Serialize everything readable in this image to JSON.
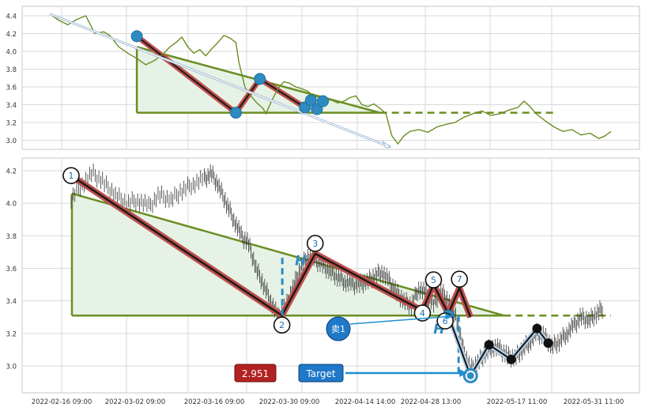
{
  "chart_data": [
    {
      "type": "line",
      "panel": "overview",
      "y_ticks": [
        "3.0",
        "3.2",
        "3.4",
        "3.6",
        "3.8",
        "4.0",
        "4.2",
        "4.4"
      ],
      "ylim": [
        2.93,
        4.52
      ],
      "grid": true,
      "series_color": "#6b8e23",
      "price_line": [
        [
          0,
          4.42
        ],
        [
          3,
          4.35
        ],
        [
          6,
          4.3
        ],
        [
          9,
          4.36
        ],
        [
          12,
          4.4
        ],
        [
          15,
          4.2
        ],
        [
          18,
          4.22
        ],
        [
          20,
          4.18
        ],
        [
          23,
          4.05
        ],
        [
          26,
          3.98
        ],
        [
          29,
          3.92
        ],
        [
          32,
          3.85
        ],
        [
          35,
          3.9
        ],
        [
          38,
          3.98
        ],
        [
          40,
          4.05
        ],
        [
          42,
          4.1
        ],
        [
          44,
          4.16
        ],
        [
          46,
          4.05
        ],
        [
          48,
          3.98
        ],
        [
          50,
          4.02
        ],
        [
          52,
          3.95
        ],
        [
          54,
          4.03
        ],
        [
          56,
          4.1
        ],
        [
          58,
          4.18
        ],
        [
          60,
          4.15
        ],
        [
          62,
          4.1
        ],
        [
          63,
          3.88
        ],
        [
          65,
          3.6
        ],
        [
          67,
          3.5
        ],
        [
          69,
          3.42
        ],
        [
          71,
          3.36
        ],
        [
          72,
          3.3
        ],
        [
          74,
          3.45
        ],
        [
          76,
          3.58
        ],
        [
          78,
          3.66
        ],
        [
          80,
          3.64
        ],
        [
          82,
          3.6
        ],
        [
          84,
          3.58
        ],
        [
          86,
          3.55
        ],
        [
          88,
          3.5
        ],
        [
          90,
          3.48
        ],
        [
          92,
          3.46
        ],
        [
          94,
          3.45
        ],
        [
          96,
          3.42
        ],
        [
          98,
          3.44
        ],
        [
          100,
          3.48
        ],
        [
          102,
          3.5
        ],
        [
          104,
          3.4
        ],
        [
          106,
          3.38
        ],
        [
          108,
          3.41
        ],
        [
          110,
          3.36
        ],
        [
          112,
          3.3
        ],
        [
          114,
          3.05
        ],
        [
          116,
          2.96
        ],
        [
          118,
          3.05
        ],
        [
          120,
          3.1
        ],
        [
          123,
          3.12
        ],
        [
          126,
          3.09
        ],
        [
          129,
          3.15
        ],
        [
          132,
          3.18
        ],
        [
          135,
          3.2
        ],
        [
          138,
          3.26
        ],
        [
          141,
          3.3
        ],
        [
          144,
          3.33
        ],
        [
          147,
          3.28
        ],
        [
          150,
          3.3
        ],
        [
          153,
          3.34
        ],
        [
          156,
          3.37
        ],
        [
          158,
          3.44
        ],
        [
          160,
          3.38
        ],
        [
          162,
          3.3
        ],
        [
          165,
          3.22
        ],
        [
          168,
          3.15
        ],
        [
          171,
          3.1
        ],
        [
          174,
          3.12
        ],
        [
          177,
          3.06
        ],
        [
          180,
          3.08
        ],
        [
          183,
          3.02
        ],
        [
          185,
          3.05
        ],
        [
          187,
          3.1
        ]
      ],
      "trend_arrow": [
        [
          0,
          4.42
        ],
        [
          114,
          2.96
        ]
      ],
      "swing_points": [
        [
          29,
          4.17
        ],
        [
          62,
          3.31
        ],
        [
          70,
          3.69
        ],
        [
          85,
          3.37
        ],
        [
          87,
          3.45
        ],
        [
          89,
          3.35
        ],
        [
          91,
          3.44
        ]
      ],
      "triangle": {
        "apex_x": 29,
        "base_y": 3.31,
        "top_y": 4.05,
        "end_x": 110,
        "dashed_to_x": 168
      }
    },
    {
      "type": "line",
      "panel": "detail",
      "y_ticks": [
        "3.0",
        "3.2",
        "3.4",
        "3.6",
        "3.8",
        "4.0",
        "4.2"
      ],
      "ylim": [
        2.85,
        4.26
      ],
      "x_ticks": [
        "2022-02-16 09:00",
        "2022-03-02 09:00",
        "2022-03-16 09:00",
        "2022-03-30 09:00",
        "2022-04-14 14:00",
        "2022-04-28 13:00",
        "2022-05-17 11:00",
        "2022-05-31 11:00"
      ],
      "grid": true,
      "series_color": "#333333",
      "price_line": [
        [
          0,
          4.03
        ],
        [
          3,
          4.12
        ],
        [
          6,
          4.18
        ],
        [
          9,
          4.12
        ],
        [
          12,
          4.05
        ],
        [
          15,
          4.0
        ],
        [
          18,
          4.02
        ],
        [
          21,
          3.98
        ],
        [
          24,
          4.05
        ],
        [
          27,
          4.02
        ],
        [
          30,
          4.08
        ],
        [
          33,
          4.12
        ],
        [
          36,
          4.15
        ],
        [
          38,
          4.18
        ],
        [
          40,
          4.1
        ],
        [
          42,
          4.0
        ],
        [
          44,
          3.9
        ],
        [
          46,
          3.8
        ],
        [
          48,
          3.75
        ],
        [
          50,
          3.6
        ],
        [
          52,
          3.5
        ],
        [
          54,
          3.4
        ],
        [
          56,
          3.3
        ],
        [
          58,
          3.36
        ],
        [
          60,
          3.48
        ],
        [
          62,
          3.6
        ],
        [
          64,
          3.68
        ],
        [
          66,
          3.65
        ],
        [
          68,
          3.62
        ],
        [
          70,
          3.58
        ],
        [
          72,
          3.55
        ],
        [
          74,
          3.52
        ],
        [
          76,
          3.5
        ],
        [
          78,
          3.5
        ],
        [
          80,
          3.52
        ],
        [
          82,
          3.55
        ],
        [
          84,
          3.58
        ],
        [
          86,
          3.52
        ],
        [
          88,
          3.45
        ],
        [
          90,
          3.4
        ],
        [
          92,
          3.37
        ],
        [
          94,
          3.48
        ],
        [
          96,
          3.44
        ],
        [
          98,
          3.38
        ],
        [
          100,
          3.46
        ],
        [
          102,
          3.4
        ],
        [
          104,
          3.32
        ],
        [
          106,
          3.1
        ],
        [
          108,
          2.98
        ],
        [
          110,
          3.02
        ],
        [
          112,
          3.08
        ],
        [
          114,
          3.12
        ],
        [
          116,
          3.1
        ],
        [
          118,
          3.06
        ],
        [
          120,
          3.05
        ],
        [
          122,
          3.1
        ],
        [
          124,
          3.15
        ],
        [
          126,
          3.2
        ],
        [
          128,
          3.18
        ],
        [
          130,
          3.12
        ],
        [
          132,
          3.15
        ],
        [
          134,
          3.2
        ],
        [
          136,
          3.25
        ],
        [
          138,
          3.3
        ],
        [
          140,
          3.28
        ],
        [
          142,
          3.32
        ],
        [
          144,
          3.36
        ]
      ],
      "swing_points": [
        {
          "label": "1",
          "x": 0,
          "y": 4.17
        },
        {
          "label": "2",
          "x": 57,
          "y": 3.31
        },
        {
          "label": "3",
          "x": 66,
          "y": 3.69
        },
        {
          "label": "4",
          "x": 95,
          "y": 3.34
        },
        {
          "label": "5",
          "x": 98,
          "y": 3.5
        },
        {
          "label": "6",
          "x": 102,
          "y": 3.32
        },
        {
          "label": "7",
          "x": 105,
          "y": 3.48
        }
      ],
      "pattern_path": [
        [
          0,
          4.17
        ],
        [
          57,
          3.31
        ],
        [
          66,
          3.69
        ],
        [
          95,
          3.34
        ],
        [
          98,
          3.5
        ],
        [
          102,
          3.32
        ],
        [
          105,
          3.48
        ],
        [
          108,
          3.3
        ]
      ],
      "triangle": {
        "apex_x": 0,
        "base_y": 3.31,
        "top_y": 4.06,
        "end_x": 117,
        "dashed_to_x": 146
      },
      "forecast_path": [
        [
          102,
          3.31
        ],
        [
          108,
          2.94
        ],
        [
          113,
          3.13
        ],
        [
          119,
          3.04
        ],
        [
          126,
          3.23
        ],
        [
          129,
          3.14
        ]
      ],
      "target_price": 2.951,
      "height_marker_H": "H",
      "sell_label": "卖1",
      "target_label": "Target"
    }
  ],
  "colors": {
    "grid": "#d9d9d9",
    "triangle_line": "#6b8e23",
    "triangle_fill": "#e6f2e6",
    "pattern_outer": "#c0504d",
    "pattern_inner": "#1a1a1a",
    "swing_dot": "#2e8bc0",
    "height_marker": "#2e8bc0",
    "arrow": "#1f8fd0",
    "price_badge": "#b22222",
    "target_badge": "#1f78c8",
    "forecast_line": "#111111"
  }
}
